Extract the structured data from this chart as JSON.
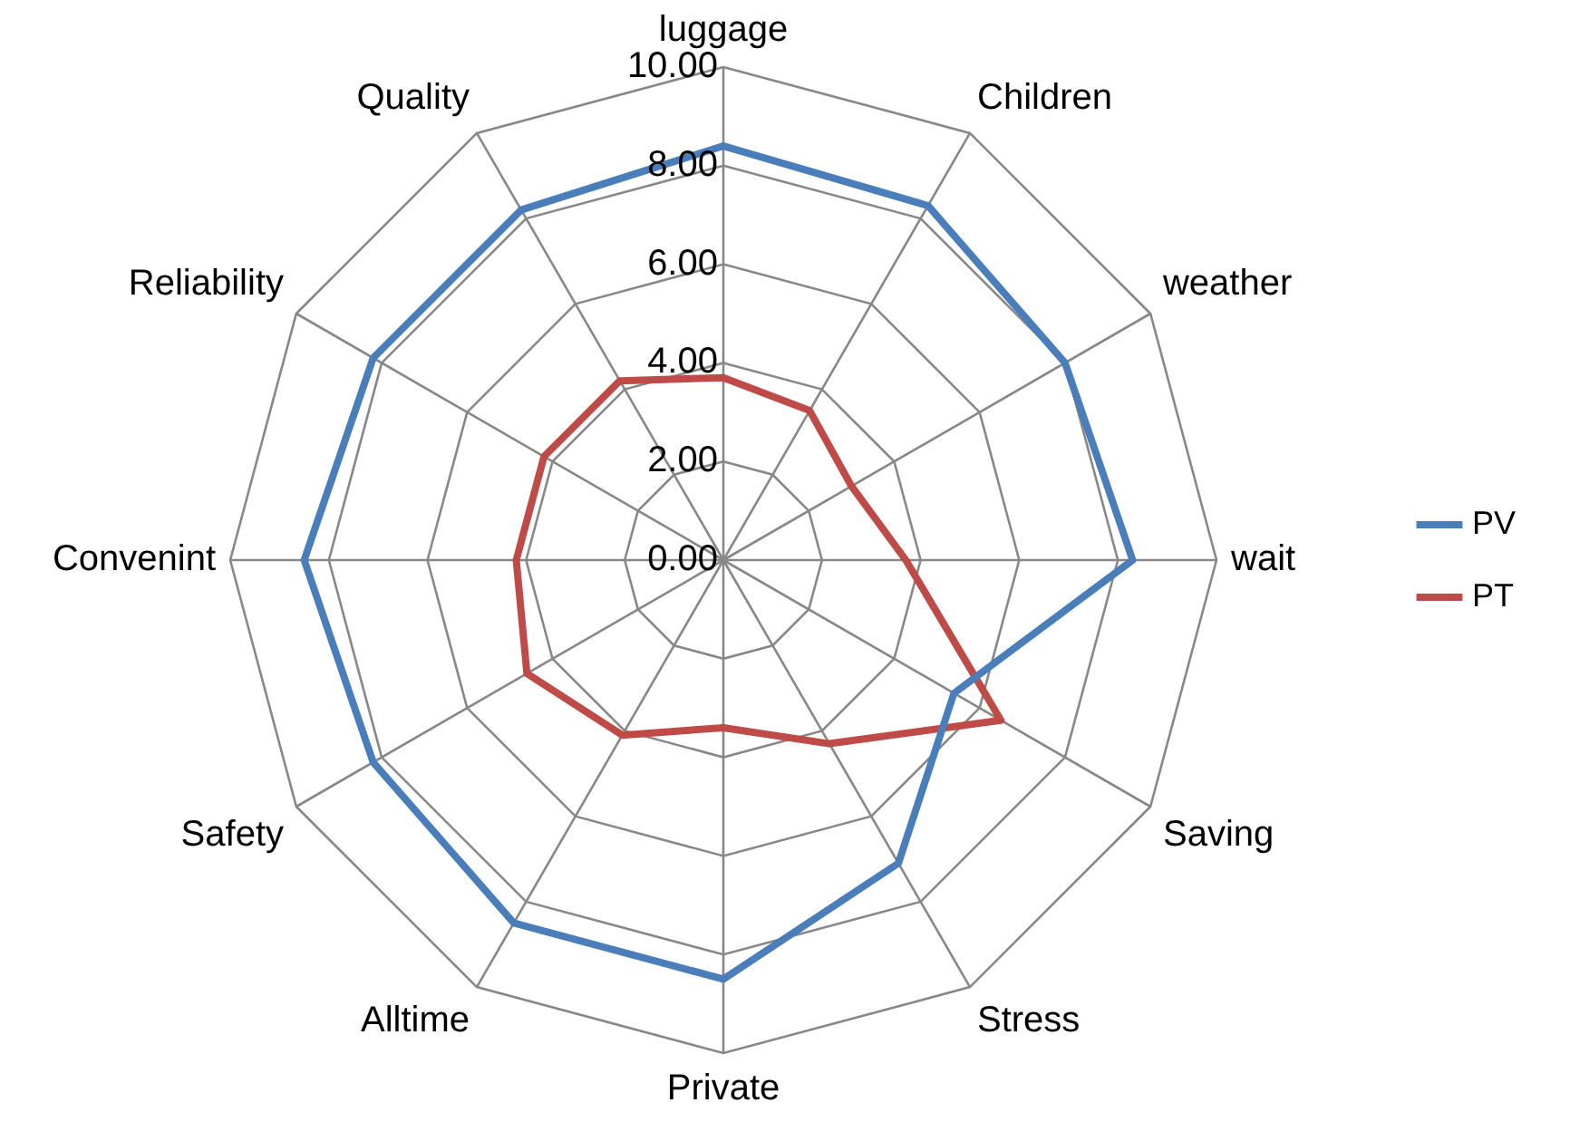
{
  "chart_data": {
    "type": "radar",
    "categories": [
      "luggage",
      "Children",
      "weather",
      "wait",
      "Saving",
      "Stress",
      "Private",
      "Alltime",
      "Safety",
      "Convenint",
      "Reliability",
      "Quality"
    ],
    "series": [
      {
        "name": "PV",
        "color": "#4a7ebb",
        "values": [
          8.4,
          8.3,
          8.0,
          8.3,
          5.4,
          7.1,
          8.5,
          8.5,
          8.2,
          8.5,
          8.2,
          8.2
        ]
      },
      {
        "name": "PT",
        "color": "#be4b48",
        "values": [
          3.7,
          3.5,
          3.0,
          3.7,
          6.5,
          4.3,
          3.4,
          4.1,
          4.6,
          4.2,
          4.2,
          4.2
        ]
      }
    ],
    "ylim": [
      0,
      10
    ],
    "yticks": [
      {
        "value": 0,
        "label": "0.00"
      },
      {
        "value": 2,
        "label": "2.00"
      },
      {
        "value": 4,
        "label": "4.00"
      },
      {
        "value": 6,
        "label": "6.00"
      },
      {
        "value": 8,
        "label": "8.00"
      },
      {
        "value": 10,
        "label": "10.00"
      }
    ],
    "grid": true,
    "legend": "right",
    "marker": "none",
    "line_style": "solid"
  }
}
